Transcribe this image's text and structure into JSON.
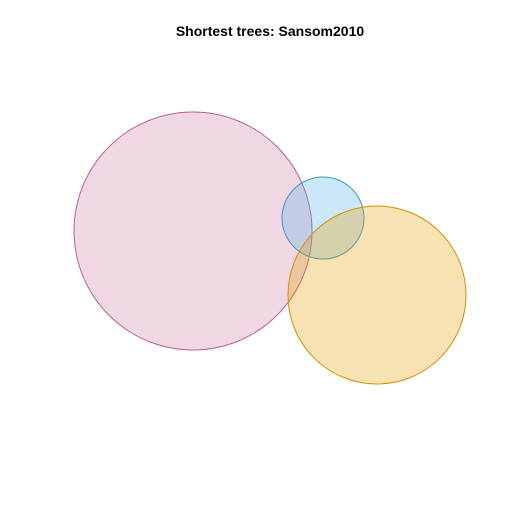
{
  "title": "Shortest trees: Sansom2010",
  "sets": [
    {
      "id": "pink-set",
      "fill": "#cc79a7",
      "stroke": "#b5648f",
      "fill_opacity": 0.3
    },
    {
      "id": "blue-set",
      "fill": "#56b4e9",
      "stroke": "#3f98c9",
      "fill_opacity": 0.3
    },
    {
      "id": "orange-set",
      "fill": "#e69f00",
      "stroke": "#d48f00",
      "fill_opacity": 0.3
    }
  ]
}
